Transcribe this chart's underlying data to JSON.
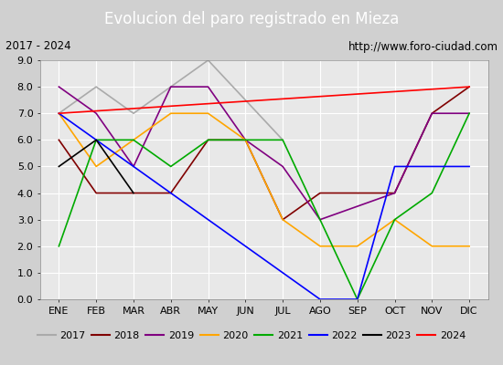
{
  "title": "Evolucion del paro registrado en Mieza",
  "subtitle_left": "2017 - 2024",
  "subtitle_right": "http://www.foro-ciudad.com",
  "months": [
    "ENE",
    "FEB",
    "MAR",
    "ABR",
    "MAY",
    "JUN",
    "JUL",
    "AGO",
    "SEP",
    "OCT",
    "NOV",
    "DIC"
  ],
  "ylim": [
    0.0,
    9.0
  ],
  "yticks": [
    0.0,
    1.0,
    2.0,
    3.0,
    4.0,
    5.0,
    6.0,
    7.0,
    8.0,
    9.0
  ],
  "series": {
    "2017": {
      "color": "#aaaaaa",
      "data": [
        7.0,
        8.0,
        7.0,
        null,
        9.0,
        null,
        6.0,
        null,
        null,
        null,
        null,
        null
      ]
    },
    "2018": {
      "color": "#800000",
      "data": [
        6.0,
        4.0,
        4.0,
        4.0,
        6.0,
        6.0,
        3.0,
        4.0,
        4.0,
        4.0,
        7.0,
        8.0
      ]
    },
    "2019": {
      "color": "#800080",
      "data": [
        8.0,
        7.0,
        5.0,
        8.0,
        8.0,
        6.0,
        5.0,
        3.0,
        3.5,
        4.0,
        7.0,
        7.0
      ]
    },
    "2020": {
      "color": "#ffa500",
      "data": [
        7.0,
        5.0,
        6.0,
        7.0,
        7.0,
        6.0,
        3.0,
        2.0,
        2.0,
        3.0,
        2.0,
        2.0
      ]
    },
    "2021": {
      "color": "#00aa00",
      "data": [
        2.0,
        6.0,
        6.0,
        5.0,
        6.0,
        6.0,
        6.0,
        3.0,
        0.0,
        3.0,
        4.0,
        7.0
      ]
    },
    "2022": {
      "color": "#0000ff",
      "data": [
        7.0,
        6.0,
        5.0,
        null,
        null,
        null,
        null,
        0.0,
        0.0,
        5.0,
        5.0,
        5.0
      ]
    },
    "2023": {
      "color": "#000000",
      "data": [
        5.0,
        6.0,
        4.0,
        null,
        null,
        null,
        null,
        null,
        null,
        null,
        null,
        null
      ]
    },
    "2024": {
      "color": "#ff0000",
      "data": [
        7.0,
        null,
        null,
        null,
        null,
        null,
        null,
        null,
        null,
        null,
        null,
        8.0
      ]
    }
  },
  "title_bg_color": "#4472c4",
  "title_color": "#ffffff",
  "title_fontsize": 12,
  "subtitle_fontsize": 8.5,
  "plot_bg_color": "#e8e8e8",
  "grid_color": "#ffffff",
  "legend_fontsize": 8,
  "fig_bg_color": "#d0d0d0"
}
